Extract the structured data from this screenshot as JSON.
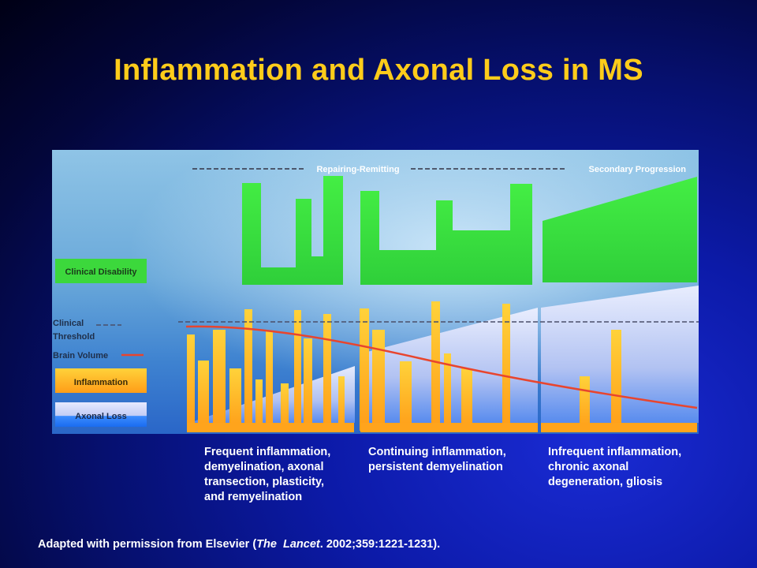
{
  "title": "Inflammation and Axonal Loss in MS",
  "diagram": {
    "phase_labels": {
      "relapsing": "Repairing-Remitting",
      "secondary": "Secondary Progression"
    },
    "legend": {
      "clinical_disability": "Clinical Disability",
      "clinical_threshold_line1": "Clinical",
      "clinical_threshold_line2": "Threshold",
      "brain_volume": "Brain Volume",
      "inflammation": "Inflammation",
      "axonal_loss": "Axonal Loss"
    },
    "colors": {
      "disability": "#33e633",
      "inflammation": "#ffb81f",
      "axonal_loss": "#cfd6ff",
      "brain_volume": "#e8452e",
      "threshold": "#555577",
      "title": "#ffcc1a"
    }
  },
  "captions": [
    {
      "lines": [
        "Frequent inflammation,",
        "demyelination, axonal",
        "transection, plasticity,",
        "and remyelination"
      ]
    },
    {
      "lines": [
        "Continuing inflammation,",
        "persistent demyelination"
      ]
    },
    {
      "lines": [
        "Infrequent inflammation,",
        "chronic axonal",
        "degeneration, gliosis"
      ]
    }
  ],
  "footnote": {
    "prefix": "Adapted with permission from Elsevier (",
    "journal_italic_1": "The",
    "journal_italic_2": "Lancet",
    "suffix": ". 2002;359:1221-1231)."
  }
}
